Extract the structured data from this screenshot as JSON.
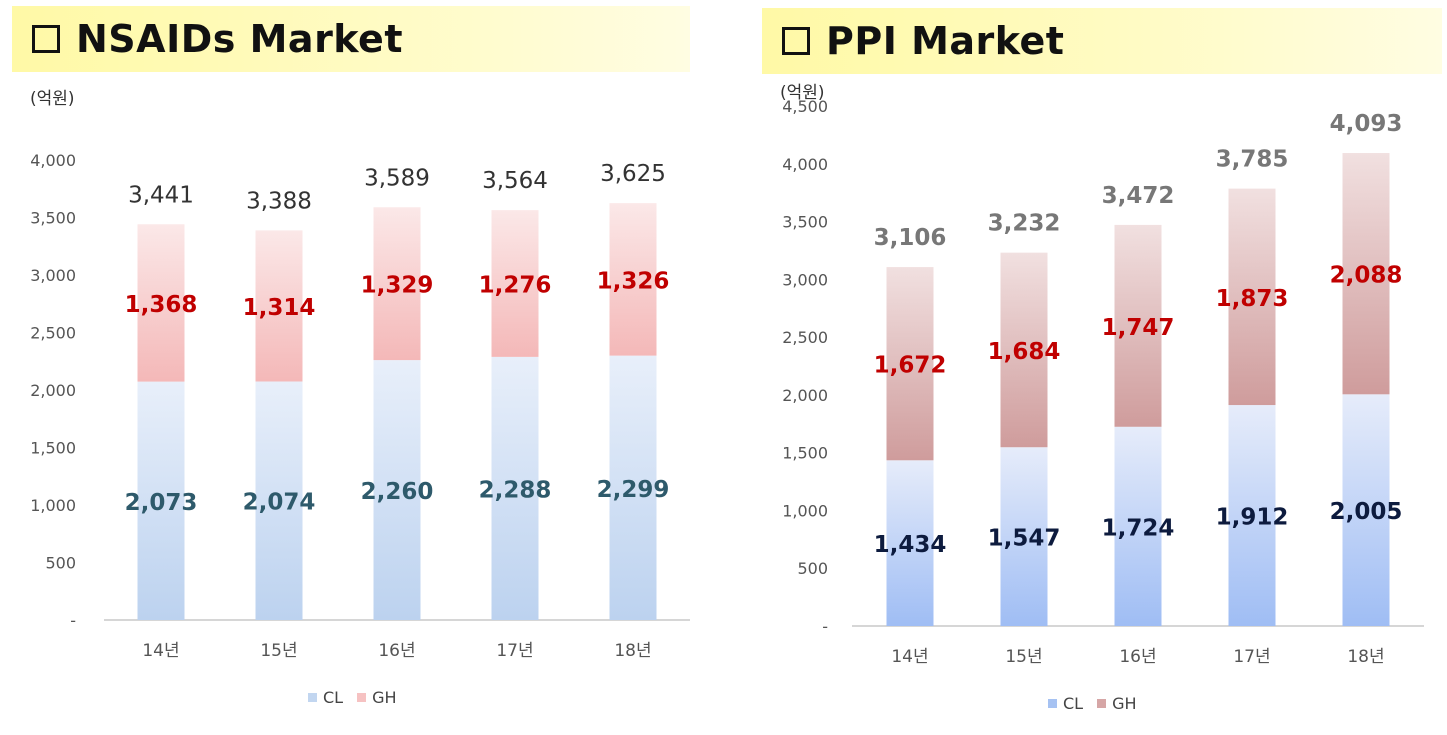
{
  "charts": [
    {
      "title": "□ NSAIDs Market",
      "title_text": "NSAIDs Market",
      "unit": "(억원)",
      "legend": [
        "CL",
        "GH"
      ]
    },
    {
      "title": "□ PPI Market",
      "title_text": "PPI Market",
      "unit": "(억원)",
      "legend": [
        "CL",
        "GH"
      ]
    }
  ],
  "chart_data": [
    {
      "type": "bar",
      "stacked": true,
      "title": "NSAIDs Market",
      "ylabel": "(억원)",
      "ylim": [
        0,
        4000
      ],
      "yticks": [
        "-",
        "500",
        "1,000",
        "1,500",
        "2,000",
        "2,500",
        "3,000",
        "3,500",
        "4,000"
      ],
      "categories": [
        "14년",
        "15년",
        "16년",
        "17년",
        "18년"
      ],
      "series": [
        {
          "name": "CL",
          "values": [
            2073,
            2074,
            2260,
            2288,
            2299
          ],
          "labels": [
            "2,073",
            "2,074",
            "2,260",
            "2,288",
            "2,299"
          ],
          "color": "#c2d6f0",
          "label_color": "#2e5a6b"
        },
        {
          "name": "GH",
          "values": [
            1368,
            1314,
            1329,
            1276,
            1326
          ],
          "labels": [
            "1,368",
            "1,314",
            "1,329",
            "1,276",
            "1,326"
          ],
          "color": "#f6c2c2",
          "label_color": "#c00000"
        }
      ],
      "totals": [
        3441,
        3388,
        3589,
        3564,
        3625
      ],
      "total_labels": [
        "3,441",
        "3,388",
        "3,589",
        "3,564",
        "3,625"
      ],
      "legend_position": "bottom"
    },
    {
      "type": "bar",
      "stacked": true,
      "title": "PPI Market",
      "ylabel": "(억원)",
      "ylim": [
        0,
        4500
      ],
      "yticks": [
        "-",
        "500",
        "1,000",
        "1,500",
        "2,000",
        "2,500",
        "3,000",
        "3,500",
        "4,000",
        "4,500"
      ],
      "categories": [
        "14년",
        "15년",
        "16년",
        "17년",
        "18년"
      ],
      "series": [
        {
          "name": "CL",
          "values": [
            1434,
            1547,
            1724,
            1912,
            2005
          ],
          "labels": [
            "1,434",
            "1,547",
            "1,724",
            "1,912",
            "2,005"
          ],
          "color": "#a6c2f2",
          "label_color": "#0d1b3e"
        },
        {
          "name": "GH",
          "values": [
            1672,
            1684,
            1747,
            1873,
            2088
          ],
          "labels": [
            "1,672",
            "1,684",
            "1,747",
            "1,873",
            "2,088"
          ],
          "color": "#d6a6a6",
          "label_color": "#c00000"
        }
      ],
      "totals": [
        3106,
        3232,
        3472,
        3785,
        4093
      ],
      "total_labels": [
        "3,106",
        "3,232",
        "3,472",
        "3,785",
        "4,093"
      ],
      "legend_position": "bottom"
    }
  ]
}
